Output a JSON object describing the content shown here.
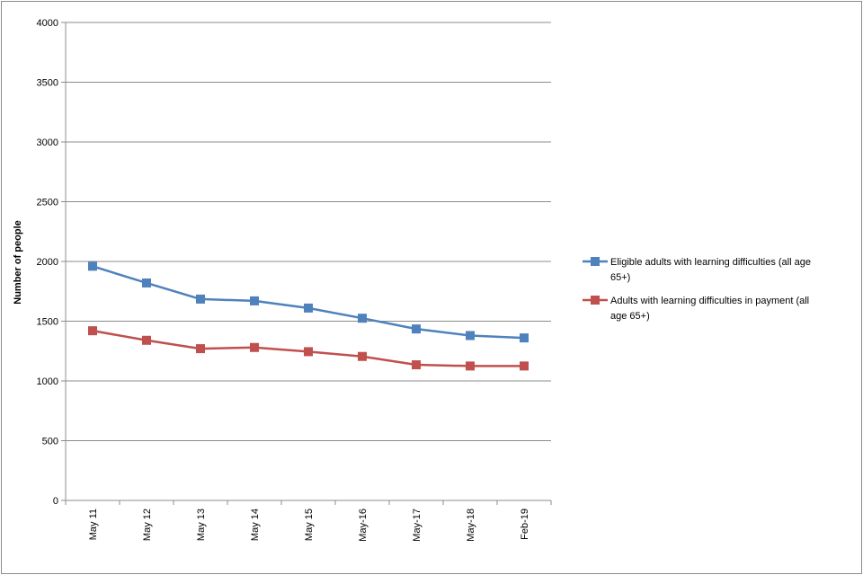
{
  "chart_data": {
    "type": "line",
    "title": "",
    "xlabel": "",
    "ylabel": "Number of people",
    "categories": [
      "May 11",
      "May 12",
      "May 13",
      "May 14",
      "May 15",
      "May-16",
      "May-17",
      "May-18",
      "Feb-19"
    ],
    "ylim": [
      0,
      4000
    ],
    "yticks": [
      0,
      500,
      1000,
      1500,
      2000,
      2500,
      3000,
      3500,
      4000
    ],
    "grid": true,
    "legend_position": "right",
    "series": [
      {
        "name": "Eligible adults with learning difficulties (all age 65+)",
        "legend_lines": [
          "Eligible adults with learning difficulties (all age",
          "65+)"
        ],
        "color": "#4f81bd",
        "values": [
          1960,
          1820,
          1685,
          1670,
          1610,
          1525,
          1435,
          1380,
          1360
        ]
      },
      {
        "name": "Adults with learning difficulties in payment (all age 65+)",
        "legend_lines": [
          "Adults with learning difficulties in payment (all",
          "age 65+)"
        ],
        "color": "#c0504d",
        "values": [
          1420,
          1340,
          1270,
          1280,
          1245,
          1205,
          1135,
          1125,
          1125
        ]
      }
    ]
  }
}
